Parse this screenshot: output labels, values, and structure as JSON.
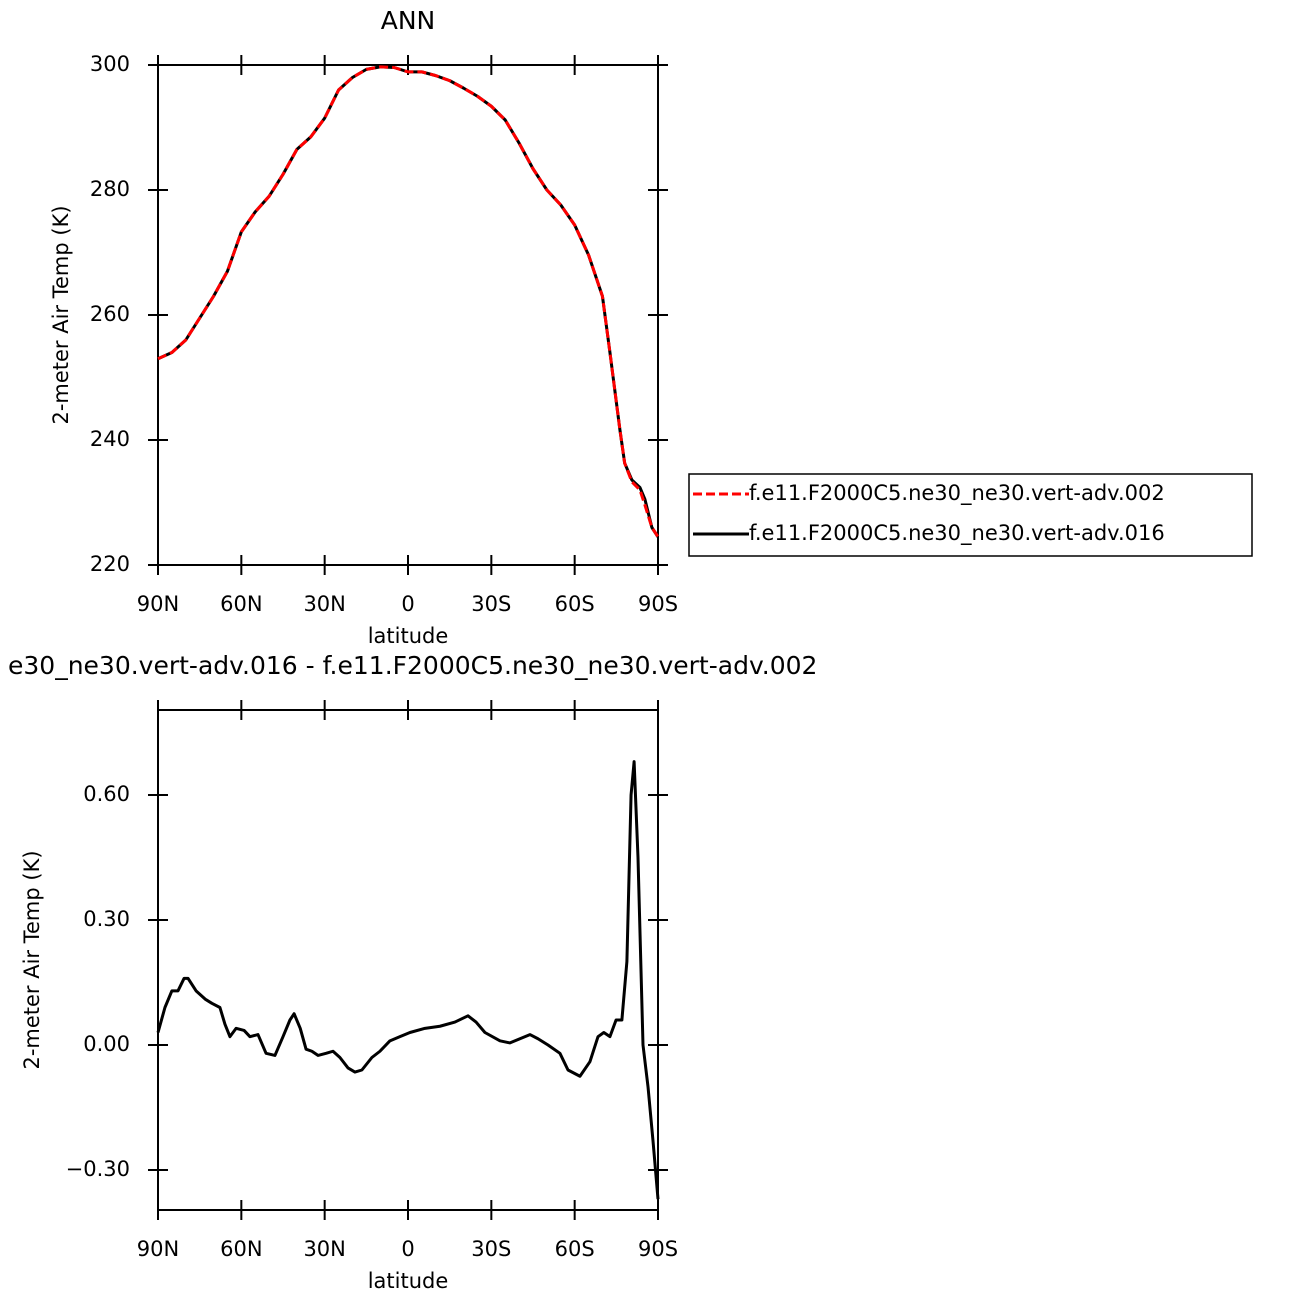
{
  "chart_data": [
    {
      "type": "line",
      "title": "ANN",
      "xlabel": "latitude",
      "ylabel": "2-meter Air Temp (K)",
      "xlim": [
        90,
        -90
      ],
      "xticks": [
        {
          "value": 90,
          "label": "90N"
        },
        {
          "value": 60,
          "label": "60N"
        },
        {
          "value": 30,
          "label": "30N"
        },
        0,
        {
          "value": -30,
          "label": "30S"
        },
        {
          "value": -60,
          "label": "60S"
        },
        {
          "value": -90,
          "label": "90S"
        }
      ],
      "ylim": [
        220,
        300
      ],
      "yticks": [
        220,
        240,
        260,
        280,
        300
      ],
      "legend": "right",
      "x": [
        90,
        85,
        80,
        75,
        70,
        65,
        60,
        55,
        50,
        45,
        40,
        35,
        30,
        25,
        20,
        15,
        10,
        5,
        0,
        -5,
        -10,
        -15,
        -20,
        -25,
        -30,
        -35,
        -40,
        -45,
        -50,
        -55,
        -60,
        -65,
        -70,
        -72.7,
        -76.3,
        -78,
        -80.6,
        -83.5,
        -85.3,
        -87.8,
        -90
      ],
      "series": [
        {
          "name": "f.e11.F2000C5.ne30_ne30.vert-adv.002",
          "color": "#ff0000",
          "dash": true,
          "values": [
            253,
            254,
            256,
            259.5,
            263,
            267,
            273.3,
            276.5,
            279,
            282.5,
            286.5,
            288.5,
            291.5,
            296,
            298,
            299.3,
            299.7,
            299.6,
            298.9,
            298.9,
            298.3,
            297.5,
            296.3,
            295,
            293.4,
            291.2,
            287.5,
            283.4,
            280,
            277.6,
            274.4,
            269.6,
            263,
            254,
            241.6,
            236.3,
            233.3,
            232,
            229.6,
            226,
            224.5
          ]
        },
        {
          "name": "f.e11.F2000C5.ne30_ne30.vert-adv.016",
          "color": "#000000",
          "dash": false,
          "values": [
            253,
            254,
            256,
            259.5,
            263,
            267,
            273.3,
            276.5,
            279,
            282.5,
            286.5,
            288.5,
            291.5,
            296,
            298,
            299.3,
            299.7,
            299.6,
            298.9,
            298.9,
            298.3,
            297.5,
            296.3,
            295,
            293.4,
            291.2,
            287.5,
            283.4,
            280,
            277.6,
            274.4,
            269.6,
            263,
            254,
            241.6,
            236.3,
            233.6,
            232.4,
            230.5,
            226,
            224.5
          ]
        }
      ]
    },
    {
      "type": "line",
      "title": "e30_ne30.vert-adv.016 - f.e11.F2000C5.ne30_ne30.vert-adv.002",
      "xlabel": "latitude",
      "ylabel": "2-meter Air Temp (K)",
      "xlim": [
        90,
        -90
      ],
      "xticks": [
        {
          "value": 90,
          "label": "90N"
        },
        {
          "value": 60,
          "label": "60N"
        },
        {
          "value": 30,
          "label": "30N"
        },
        0,
        {
          "value": -30,
          "label": "30S"
        },
        {
          "value": -60,
          "label": "60S"
        },
        {
          "value": -90,
          "label": "90S"
        }
      ],
      "ylim": [
        -0.396,
        0.804
      ],
      "yticks": [
        {
          "value": -0.3,
          "label": "−0.30"
        },
        {
          "value": 0,
          "label": "0.00"
        },
        {
          "value": 0.3,
          "label": "0.30"
        },
        {
          "value": 0.6,
          "label": "0.60"
        }
      ],
      "x": [
        90,
        87.5,
        85,
        82.8,
        80.6,
        79.2,
        76.3,
        73,
        70.6,
        67.7,
        65.9,
        64.1,
        61.9,
        59,
        56.9,
        54,
        51.1,
        47.9,
        45,
        42.5,
        41,
        38.8,
        36.7,
        34.6,
        32.4,
        29.5,
        27,
        24.5,
        21.6,
        19.1,
        16.6,
        13,
        10.1,
        6.5,
        2.9,
        -0.7,
        -6.1,
        -11.5,
        -16.9,
        -21.6,
        -24.5,
        -27.7,
        -33.1,
        -36.7,
        -40.3,
        -43.9,
        -46.8,
        -50.4,
        -54.7,
        -57.6,
        -61.9,
        -65.5,
        -68.4,
        -70.5,
        -72.7,
        -74.9,
        -77,
        -78.8,
        -80.3,
        -81.4,
        -82.8,
        -84.6,
        -86.4,
        -88.2,
        -90
      ],
      "values": [
        0.03,
        0.09,
        0.13,
        0.13,
        0.16,
        0.16,
        0.13,
        0.11,
        0.1,
        0.09,
        0.05,
        0.02,
        0.04,
        0.035,
        0.02,
        0.025,
        -0.02,
        -0.025,
        0.02,
        0.06,
        0.075,
        0.04,
        -0.01,
        -0.015,
        -0.025,
        -0.02,
        -0.015,
        -0.03,
        -0.055,
        -0.065,
        -0.06,
        -0.03,
        -0.015,
        0.01,
        0.02,
        0.03,
        0.04,
        0.045,
        0.055,
        0.07,
        0.055,
        0.03,
        0.01,
        0.005,
        0.015,
        0.025,
        0.015,
        0,
        -0.02,
        -0.06,
        -0.075,
        -0.04,
        0.02,
        0.03,
        0.02,
        0.06,
        0.06,
        0.2,
        0.6,
        0.68,
        0.45,
        0,
        -0.1,
        -0.23,
        -0.37
      ],
      "color": "#000000"
    }
  ]
}
